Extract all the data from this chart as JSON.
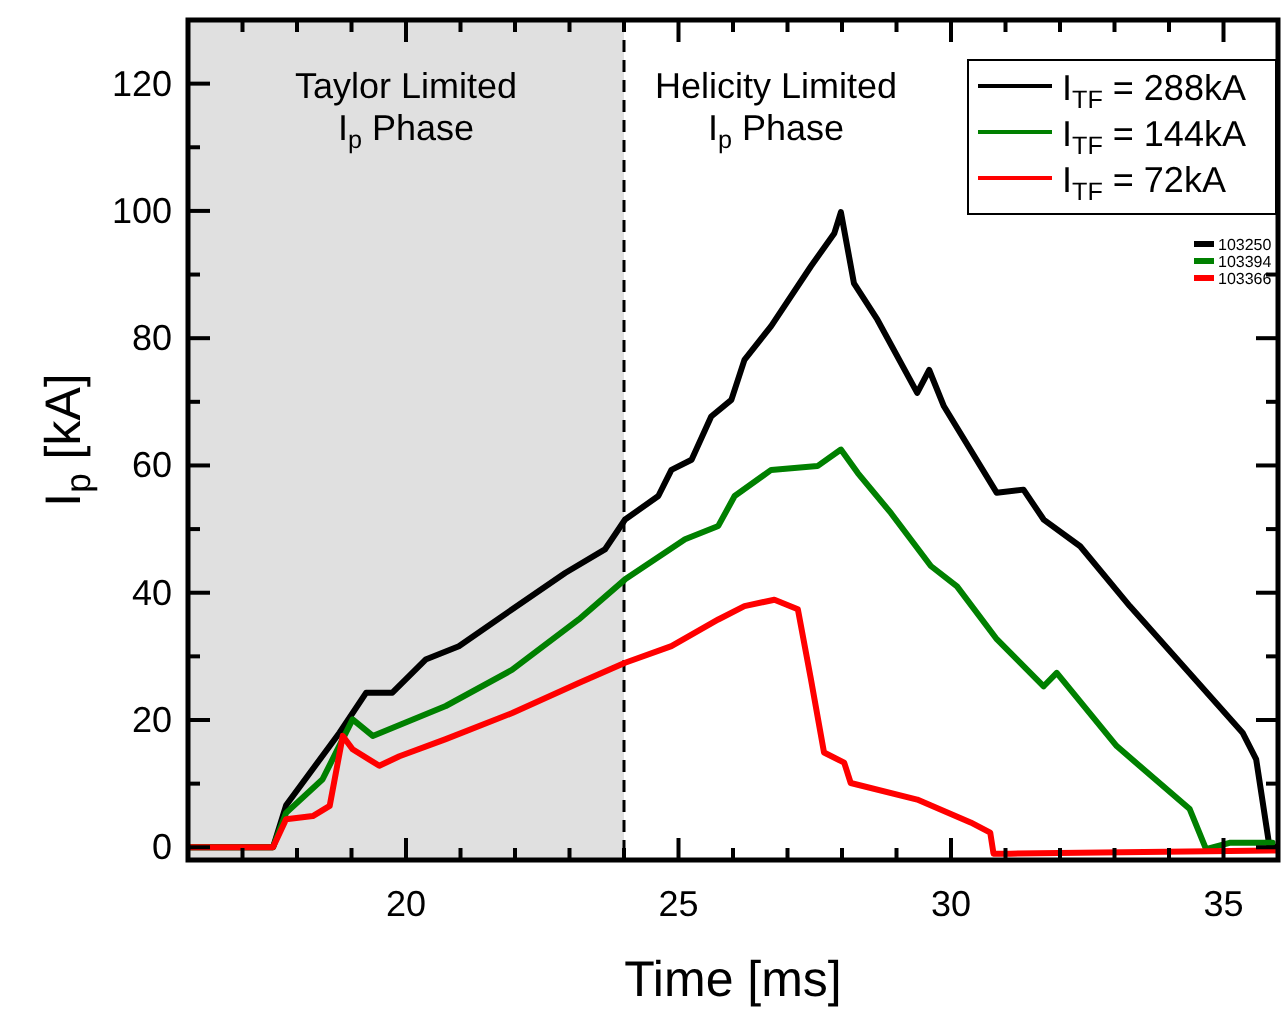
{
  "chart_data": {
    "type": "line",
    "xlabel": "Time [ms]",
    "ylabel": "I$_{p}$ [kA]",
    "xlim": [
      16,
      36
    ],
    "ylim": [
      -2,
      130
    ],
    "xticks": [
      {
        "value": 17,
        "label": null
      },
      {
        "value": 18,
        "label": null
      },
      {
        "value": 19,
        "label": null
      },
      20,
      {
        "value": 21,
        "label": null
      },
      {
        "value": 22,
        "label": null
      },
      {
        "value": 23,
        "label": null
      },
      {
        "value": 24,
        "label": null
      },
      25,
      {
        "value": 26,
        "label": null
      },
      {
        "value": 27,
        "label": null
      },
      {
        "value": 28,
        "label": null
      },
      {
        "value": 29,
        "label": null
      },
      30,
      {
        "value": 31,
        "label": null
      },
      {
        "value": 32,
        "label": null
      },
      {
        "value": 33,
        "label": null
      },
      {
        "value": 34,
        "label": null
      },
      35
    ],
    "yticks": [
      0,
      {
        "value": 10,
        "label": null
      },
      20,
      {
        "value": 30,
        "label": null
      },
      40,
      {
        "value": 50,
        "label": null
      },
      60,
      {
        "value": 70,
        "label": null
      },
      80,
      {
        "value": 90,
        "label": null
      },
      100,
      {
        "value": 110,
        "label": null
      },
      120
    ],
    "grid": false,
    "legend": "top right",
    "line_style": "solid",
    "series": [
      {
        "name": "I$_{TF}$ = 288kA",
        "color": "#000000",
        "x": [
          16,
          17.56,
          17.8,
          18.78,
          19.27,
          19.75,
          20.36,
          20.97,
          21.95,
          22.92,
          23.65,
          24.02,
          24.63,
          24.87,
          25.24,
          25.6,
          25.97,
          26.21,
          26.7,
          27.43,
          27.86,
          27.98,
          28.22,
          28.65,
          29.38,
          29.6,
          29.87,
          30.84,
          31.33,
          31.7,
          32.37,
          33.28,
          34.26,
          35.35,
          35.6,
          35.84,
          36
        ],
        "values": [
          0,
          0,
          6.6,
          18,
          24.3,
          24.3,
          29.5,
          31.6,
          37.4,
          43.1,
          46.8,
          51.5,
          55.2,
          59.3,
          60.9,
          67.7,
          70.3,
          76.6,
          81.9,
          91.3,
          96.5,
          99.8,
          88.6,
          82.9,
          71.4,
          75,
          69.3,
          55.7,
          56.2,
          51.5,
          47.3,
          37.9,
          28.5,
          18,
          13.8,
          0.3,
          0
        ]
      },
      {
        "name": "I$_{TF}$ = 144kA",
        "color": "#008000",
        "x": [
          16,
          17.56,
          17.8,
          18.47,
          19.02,
          19.39,
          20.73,
          21.95,
          23.17,
          24.02,
          25.12,
          25.73,
          26.03,
          26.7,
          27.55,
          27.98,
          28.29,
          28.9,
          29.63,
          30.11,
          30.84,
          31.7,
          31.94,
          33.04,
          34.38,
          34.68,
          35.11,
          35.9
        ],
        "values": [
          0,
          0,
          5.4,
          10.7,
          20.1,
          17.5,
          22.2,
          27.9,
          35.8,
          42.1,
          48.4,
          50.5,
          55.2,
          59.3,
          59.9,
          62.5,
          58.8,
          52.5,
          44.2,
          41,
          32.7,
          25.3,
          27.4,
          15.9,
          6,
          -0.3,
          0.7,
          0.7
        ]
      },
      {
        "name": "I$_{TF}$ = 72kA",
        "color": "#ff0000",
        "x": [
          16,
          17.56,
          17.8,
          18.29,
          18.6,
          18.84,
          19.02,
          19.51,
          19.88,
          20.73,
          21.95,
          23.17,
          24.02,
          24.87,
          25.73,
          26.21,
          26.76,
          27.19,
          27.43,
          27.67,
          28.04,
          28.16,
          29.38,
          30.36,
          30.72,
          30.78,
          31.09,
          36
        ],
        "values": [
          0,
          0,
          4.4,
          4.9,
          6.5,
          17.5,
          15.4,
          12.8,
          14.3,
          17,
          21.1,
          25.8,
          29,
          31.6,
          35.8,
          37.9,
          38.9,
          37.4,
          26.4,
          14.9,
          13.3,
          10.1,
          7.5,
          3.9,
          2.3,
          -1,
          -1,
          -0.5
        ]
      }
    ],
    "bands": [
      {
        "axis": "x",
        "from": 16,
        "to": 24,
        "label": "Taylor Limited\nI$_{p}$ Phase",
        "color": "#e0e0e0"
      }
    ],
    "ref_lines": [
      {
        "axis": "x",
        "value": 24,
        "label": "Helicity Limited\nI$_{p}$ Phase",
        "line_style": "dashed",
        "color": "#000000"
      }
    ],
    "annotations": [
      "103250",
      "103394",
      "103366"
    ]
  }
}
